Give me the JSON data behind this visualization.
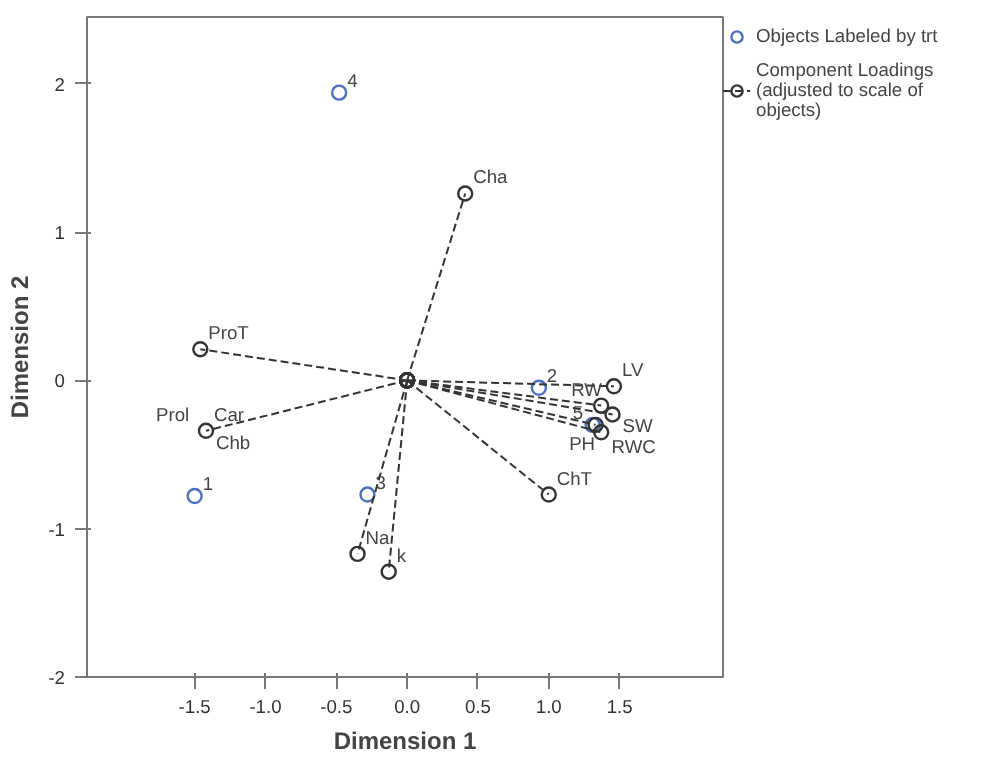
{
  "chart_data": {
    "type": "scatter",
    "xlabel": "Dimension 1",
    "ylabel": "Dimension 2",
    "xlim": [
      -2.26,
      2.23
    ],
    "ylim": [
      -2,
      2.45
    ],
    "xticks": [
      -1.5,
      {
        "value": -1.0,
        "label": "-1.0"
      },
      -0.5,
      {
        "value": 0.0,
        "label": "0.0"
      },
      0.5,
      {
        "value": 1.0,
        "label": "1.0"
      },
      1.5
    ],
    "yticks": [
      -2,
      -1,
      0,
      1,
      2
    ],
    "grid": false,
    "legend": "top right",
    "marker": "circle",
    "series": [
      {
        "name": "Objects Labeled by trt",
        "color": "#4a6fc4",
        "x": [
          -1.5,
          0.93,
          -0.28,
          -0.48,
          1.31
        ],
        "values": [
          -0.78,
          -0.05,
          -0.77,
          1.94,
          -0.3
        ]
      },
      {
        "name": "Component Loadings (adjusted to scale of objects)",
        "type": "line",
        "line_style": "dashed",
        "color": "#333333",
        "x": [
          0,
          0.41
        ],
        "values": [
          0,
          1.26
        ]
      },
      {
        "type": "line",
        "line_style": "dashed",
        "color": "#333333",
        "x": [
          0,
          -1.46
        ],
        "values": [
          0,
          0.21
        ]
      },
      {
        "type": "line",
        "line_style": "dashed",
        "color": "#333333",
        "x": [
          0,
          -1.42
        ],
        "values": [
          0,
          -0.34
        ]
      },
      {
        "type": "line",
        "line_style": "dashed",
        "color": "#333333",
        "x": [
          0,
          -0.35
        ],
        "values": [
          0,
          -1.17
        ]
      },
      {
        "type": "line",
        "line_style": "dashed",
        "color": "#333333",
        "x": [
          0,
          -0.13
        ],
        "values": [
          0,
          -1.29
        ]
      },
      {
        "type": "line",
        "line_style": "dashed",
        "color": "#333333",
        "x": [
          0,
          1.0
        ],
        "values": [
          0,
          -0.77
        ]
      },
      {
        "type": "line",
        "line_style": "dashed",
        "color": "#333333",
        "x": [
          0,
          1.46
        ],
        "values": [
          0,
          -0.04
        ]
      },
      {
        "type": "line",
        "line_style": "dashed",
        "color": "#333333",
        "x": [
          0,
          1.37
        ],
        "values": [
          0,
          -0.17
        ]
      },
      {
        "type": "line",
        "line_style": "dashed",
        "color": "#333333",
        "x": [
          0,
          1.45
        ],
        "values": [
          0,
          -0.23
        ]
      },
      {
        "type": "line",
        "line_style": "dashed",
        "color": "#333333",
        "x": [
          0,
          1.33
        ],
        "values": [
          0,
          -0.3
        ]
      },
      {
        "type": "line",
        "line_style": "dashed",
        "color": "#333333",
        "x": [
          0,
          1.37
        ],
        "values": [
          0,
          -0.35
        ]
      }
    ],
    "annotations": [
      {
        "text": "1",
        "x": -1.5,
        "y": -0.78
      },
      {
        "text": "2",
        "x": 0.93,
        "y": -0.05
      },
      {
        "text": "3",
        "x": -0.28,
        "y": -0.77
      },
      {
        "text": "4",
        "x": -0.48,
        "y": 1.94
      },
      {
        "text": "5",
        "x": 1.31,
        "y": -0.3
      },
      {
        "text": "Cha",
        "x": 0.41,
        "y": 1.26
      },
      {
        "text": "ProT",
        "x": -1.46,
        "y": 0.21
      },
      {
        "text": "Car",
        "x": -1.42,
        "y": -0.34
      },
      {
        "text": "Prol",
        "x": -1.42,
        "y": -0.34
      },
      {
        "text": "Chb",
        "x": -1.42,
        "y": -0.34
      },
      {
        "text": "Na",
        "x": -0.35,
        "y": -1.17
      },
      {
        "text": "k",
        "x": -0.13,
        "y": -1.29
      },
      {
        "text": "ChT",
        "x": 1.0,
        "y": -0.77
      },
      {
        "text": "LV",
        "x": 1.46,
        "y": -0.04
      },
      {
        "text": "RW",
        "x": 1.37,
        "y": -0.17
      },
      {
        "text": "SW",
        "x": 1.45,
        "y": -0.23
      },
      {
        "text": "RWC",
        "x": 1.33,
        "y": -0.3
      },
      {
        "text": "PH",
        "x": 1.37,
        "y": -0.35
      }
    ]
  }
}
